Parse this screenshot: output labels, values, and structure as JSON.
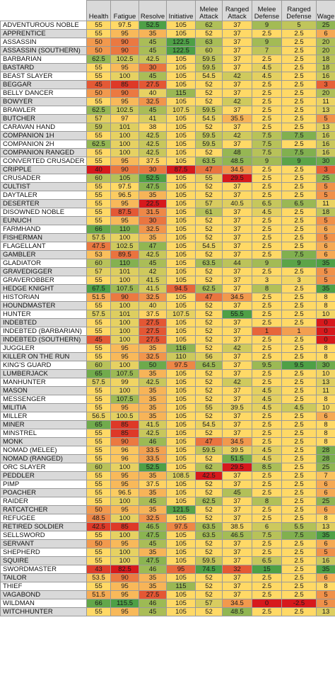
{
  "columns": [
    "",
    "Health",
    "Fatigue",
    "Resolve",
    "Initiative",
    "Melee Attack",
    "Ranged Attack",
    "Melee Defense",
    "Ranged Defense",
    "Wage"
  ],
  "rows": [
    {
      "name": "ADVENTUROUS NOBLE",
      "values": [
        "55",
        "97.5",
        "52.5",
        "105",
        "62",
        "37",
        "9",
        "5",
        "25"
      ]
    },
    {
      "name": "APPRENTICE",
      "values": [
        "55",
        "95",
        "35",
        "105",
        "52",
        "37",
        "2.5",
        "2.5",
        "6"
      ]
    },
    {
      "name": "ASSASSIN",
      "values": [
        "50",
        "90",
        "45",
        "122.5",
        "63",
        "37",
        "9",
        "2.5",
        "20"
      ]
    },
    {
      "name": "ASSASSIN (SOUTHERN)",
      "values": [
        "50",
        "90",
        "45",
        "122.5",
        "60",
        "37",
        "7",
        "2.5",
        "20"
      ]
    },
    {
      "name": "BARBARIAN",
      "values": [
        "62.5",
        "102.5",
        "42.5",
        "105",
        "59.5",
        "37",
        "2.5",
        "2.5",
        "18"
      ]
    },
    {
      "name": "BASTARD",
      "values": [
        "55",
        "95",
        "30",
        "105",
        "59.5",
        "37",
        "4.5",
        "2.5",
        "18"
      ]
    },
    {
      "name": "BEAST SLAYER",
      "values": [
        "55",
        "100",
        "45",
        "105",
        "54.5",
        "42",
        "4.5",
        "2.5",
        "16"
      ]
    },
    {
      "name": "BEGGAR",
      "values": [
        "45",
        "85",
        "27.5",
        "105",
        "52",
        "37",
        "2.5",
        "2.5",
        "3"
      ]
    },
    {
      "name": "BELLY DANCER",
      "values": [
        "50",
        "90",
        "40",
        "115",
        "52",
        "37",
        "2.5",
        "2.5",
        "20"
      ]
    },
    {
      "name": "BOWYER",
      "values": [
        "55",
        "95",
        "32.5",
        "105",
        "52",
        "42",
        "2.5",
        "2.5",
        "11"
      ]
    },
    {
      "name": "BRAWLER",
      "values": [
        "62.5",
        "102.5",
        "45",
        "107.5",
        "59.5",
        "37",
        "2.5",
        "2.5",
        "13"
      ]
    },
    {
      "name": "BUTCHER",
      "values": [
        "57",
        "97",
        "41",
        "105",
        "54.5",
        "35.5",
        "2.5",
        "2.5",
        "5"
      ]
    },
    {
      "name": "CARAVAN HAND",
      "values": [
        "59",
        "101",
        "38",
        "105",
        "52",
        "37",
        "2.5",
        "2.5",
        "13"
      ]
    },
    {
      "name": "COMPANION 1H",
      "values": [
        "55",
        "100",
        "42.5",
        "105",
        "59.5",
        "42",
        "7.5",
        "7.5",
        "16"
      ]
    },
    {
      "name": "COMPANION 2H",
      "values": [
        "62.5",
        "100",
        "42.5",
        "105",
        "59.5",
        "37",
        "7.5",
        "2.5",
        "16"
      ]
    },
    {
      "name": "COMPANION RANGED",
      "values": [
        "55",
        "100",
        "42.5",
        "105",
        "52",
        "48",
        "7.5",
        "7.5",
        "16"
      ]
    },
    {
      "name": "CONVERTED CRUSADER",
      "values": [
        "55",
        "95",
        "37.5",
        "105",
        "63.5",
        "48.5",
        "9",
        "9",
        "30"
      ]
    },
    {
      "name": "CRIPPLE",
      "values": [
        "40",
        "90",
        "30",
        "87.5",
        "47",
        "34.5",
        "2.5",
        "2.5",
        "3"
      ]
    },
    {
      "name": "CRUSADER",
      "values": [
        "60",
        "105",
        "52.5",
        "105",
        "55",
        "29.5",
        "2.5",
        "2.5",
        "25"
      ]
    },
    {
      "name": "CULTIST",
      "values": [
        "55",
        "97.5",
        "47.5",
        "105",
        "52",
        "37",
        "2.5",
        "2.5",
        "5"
      ]
    },
    {
      "name": "DAYTALER",
      "values": [
        "55",
        "96.5",
        "35",
        "105",
        "52",
        "37",
        "2.5",
        "2.5",
        "5"
      ]
    },
    {
      "name": "DESERTER",
      "values": [
        "55",
        "95",
        "22.5",
        "105",
        "57",
        "40.5",
        "6.5",
        "6.5",
        "11"
      ]
    },
    {
      "name": "DISOWNED NOBLE",
      "values": [
        "55",
        "87.5",
        "31.5",
        "105",
        "61",
        "37",
        "4.5",
        "2.5",
        "18"
      ]
    },
    {
      "name": "EUNUCH",
      "values": [
        "55",
        "95",
        "30",
        "105",
        "52",
        "37",
        "2.5",
        "2.5",
        "5"
      ]
    },
    {
      "name": "FARMHAND",
      "values": [
        "66",
        "110",
        "32.5",
        "105",
        "52",
        "37",
        "2.5",
        "2.5",
        "6"
      ]
    },
    {
      "name": "FISHERMAN",
      "values": [
        "57.5",
        "100",
        "35",
        "105",
        "52",
        "37",
        "2.5",
        "2.5",
        "5"
      ]
    },
    {
      "name": "FLAGELLANT",
      "values": [
        "47.5",
        "102.5",
        "47",
        "105",
        "54.5",
        "37",
        "2.5",
        "2.5",
        "6"
      ]
    },
    {
      "name": "GAMBLER",
      "values": [
        "53",
        "89.5",
        "42.5",
        "105",
        "52",
        "37",
        "2.5",
        "7.5",
        "6"
      ]
    },
    {
      "name": "GLADIATOR",
      "values": [
        "60",
        "110",
        "45",
        "105",
        "63.5",
        "44",
        "9",
        "9",
        "35"
      ]
    },
    {
      "name": "GRAVEDIGGER",
      "values": [
        "57",
        "101",
        "42",
        "105",
        "52",
        "37",
        "2.5",
        "2.5",
        "5"
      ]
    },
    {
      "name": "GRAVEROBBER",
      "values": [
        "55",
        "100",
        "41.5",
        "105",
        "52",
        "37",
        "3",
        "3",
        "5"
      ]
    },
    {
      "name": "HEDGE KNIGHT",
      "values": [
        "67.5",
        "107.5",
        "41.5",
        "94.5",
        "62.5",
        "37",
        "8",
        "2.5",
        "35"
      ]
    },
    {
      "name": "HISTORIAN",
      "values": [
        "51.5",
        "90",
        "32.5",
        "105",
        "47",
        "34.5",
        "2.5",
        "2.5",
        "8"
      ]
    },
    {
      "name": "HOUNDMASTER",
      "values": [
        "55",
        "100",
        "40",
        "105",
        "52",
        "37",
        "2.5",
        "2.5",
        "8"
      ]
    },
    {
      "name": "HUNTER",
      "values": [
        "57.5",
        "101",
        "37.5",
        "107.5",
        "52",
        "55.5",
        "2.5",
        "2.5",
        "10"
      ]
    },
    {
      "name": "INDEBTED",
      "values": [
        "55",
        "100",
        "27.5",
        "105",
        "52",
        "37",
        "2.5",
        "2.5",
        "0"
      ]
    },
    {
      "name": "INDEBTED (BARBARIAN)",
      "values": [
        "55",
        "100",
        "27.5",
        "105",
        "52",
        "37",
        "1",
        "1",
        "0"
      ]
    },
    {
      "name": "INDEBTED (SOUTHERN)",
      "values": [
        "45",
        "100",
        "27.5",
        "105",
        "52",
        "37",
        "2.5",
        "2.5",
        "0"
      ]
    },
    {
      "name": "JUGGLER",
      "values": [
        "55",
        "95",
        "35",
        "116",
        "52",
        "42",
        "2.5",
        "2.5",
        "8"
      ]
    },
    {
      "name": "KILLER ON THE RUN",
      "values": [
        "55",
        "95",
        "32.5",
        "110",
        "56",
        "37",
        "2.5",
        "2.5",
        "8"
      ]
    },
    {
      "name": "KING'S GUARD",
      "values": [
        "60",
        "100",
        "50",
        "97.5",
        "64.5",
        "37",
        "9.5",
        "9.5",
        "30"
      ]
    },
    {
      "name": "LUMBERJACK",
      "values": [
        "65",
        "107.5",
        "35",
        "105",
        "52",
        "37",
        "2.5",
        "2.5",
        "10"
      ]
    },
    {
      "name": "MANHUNTER",
      "values": [
        "57.5",
        "99",
        "42.5",
        "105",
        "52",
        "42",
        "2.5",
        "2.5",
        "13"
      ]
    },
    {
      "name": "MASON",
      "values": [
        "55",
        "100",
        "35",
        "105",
        "52",
        "37",
        "4.5",
        "2.5",
        "11"
      ]
    },
    {
      "name": "MESSENGER",
      "values": [
        "55",
        "107.5",
        "35",
        "105",
        "52",
        "37",
        "4.5",
        "2.5",
        "8"
      ]
    },
    {
      "name": "MILITIA",
      "values": [
        "55",
        "95",
        "35",
        "105",
        "55",
        "39.5",
        "4.5",
        "4.5",
        "10"
      ]
    },
    {
      "name": "MILLER",
      "values": [
        "56.5",
        "100.5",
        "35",
        "105",
        "52",
        "37",
        "2.5",
        "2.5",
        "6"
      ]
    },
    {
      "name": "MINER",
      "values": [
        "65",
        "85",
        "41.5",
        "105",
        "54.5",
        "37",
        "2.5",
        "2.5",
        "8"
      ]
    },
    {
      "name": "MINSTREL",
      "values": [
        "55",
        "85",
        "42.5",
        "105",
        "52",
        "37",
        "2.5",
        "2.5",
        "8"
      ]
    },
    {
      "name": "MONK",
      "values": [
        "55",
        "90",
        "46",
        "105",
        "47",
        "34.5",
        "2.5",
        "2.5",
        "8"
      ]
    },
    {
      "name": "NOMAD (MELEE)",
      "values": [
        "55",
        "96",
        "33.5",
        "105",
        "59.5",
        "39.5",
        "4.5",
        "2.5",
        "28"
      ]
    },
    {
      "name": "NOMAD (RANGED)",
      "values": [
        "55",
        "96",
        "33.5",
        "105",
        "52",
        "51.5",
        "4.5",
        "2.5",
        "28"
      ]
    },
    {
      "name": "ORC SLAYER",
      "values": [
        "60",
        "100",
        "52.5",
        "105",
        "62",
        "29.5",
        "8.5",
        "2.5",
        "25"
      ]
    },
    {
      "name": "PEDDLER",
      "values": [
        "55",
        "95",
        "35",
        "108.5",
        "42.5",
        "37",
        "2.5",
        "2.5",
        "7"
      ]
    },
    {
      "name": "PIMP",
      "values": [
        "55",
        "95",
        "37.5",
        "105",
        "52",
        "37",
        "2.5",
        "2.5",
        "6"
      ]
    },
    {
      "name": "POACHER",
      "values": [
        "55",
        "96.5",
        "35",
        "105",
        "52",
        "45",
        "2.5",
        "2.5",
        "6"
      ]
    },
    {
      "name": "RAIDER",
      "values": [
        "55",
        "100",
        "45",
        "105",
        "62.5",
        "37",
        "8",
        "2.5",
        "25"
      ]
    },
    {
      "name": "RATCATCHER",
      "values": [
        "50",
        "95",
        "35",
        "121.5",
        "52",
        "37",
        "2.5",
        "2.5",
        "6"
      ]
    },
    {
      "name": "REFUGEE",
      "values": [
        "48.5",
        "100",
        "32.5",
        "105",
        "52",
        "37",
        "2.5",
        "2.5",
        "8"
      ]
    },
    {
      "name": "RETIRED SOLDIER",
      "values": [
        "42.5",
        "85",
        "46.5",
        "97.5",
        "63.5",
        "38.5",
        "6",
        "5.5",
        "13"
      ]
    },
    {
      "name": "SELLSWORD",
      "values": [
        "55",
        "100",
        "47.5",
        "105",
        "63.5",
        "46.5",
        "7.5",
        "7.5",
        "35"
      ]
    },
    {
      "name": "SERVANT",
      "values": [
        "50",
        "95",
        "45",
        "105",
        "52",
        "37",
        "2.5",
        "2.5",
        "6"
      ]
    },
    {
      "name": "SHEPHERD",
      "values": [
        "55",
        "100",
        "35",
        "105",
        "52",
        "37",
        "2.5",
        "2.5",
        "5"
      ]
    },
    {
      "name": "SQUIRE",
      "values": [
        "55",
        "100",
        "47.5",
        "105",
        "59.5",
        "37",
        "6.5",
        "2.5",
        "16"
      ]
    },
    {
      "name": "SWORDMASTER",
      "values": [
        "43",
        "82.5",
        "46",
        "95",
        "74.5",
        "32",
        "15",
        "2.5",
        "35"
      ]
    },
    {
      "name": "TAILOR",
      "values": [
        "53.5",
        "90",
        "35",
        "105",
        "52",
        "37",
        "2.5",
        "2.5",
        "6"
      ]
    },
    {
      "name": "THIEF",
      "values": [
        "55",
        "95",
        "35",
        "115",
        "52",
        "37",
        "2.5",
        "2.5",
        "8"
      ]
    },
    {
      "name": "VAGABOND",
      "values": [
        "51.5",
        "95",
        "27.5",
        "105",
        "52",
        "37",
        "2.5",
        "2.5",
        "5"
      ]
    },
    {
      "name": "WILDMAN",
      "values": [
        "66",
        "115.5",
        "46",
        "105",
        "57",
        "34.5",
        "0",
        "-2.5",
        "5"
      ]
    },
    {
      "name": "WITCHHUNTER",
      "values": [
        "55",
        "95",
        "45",
        "105",
        "52",
        "48.5",
        "2.5",
        "2.5",
        "13"
      ]
    }
  ],
  "colors": {
    "header_bg": "#d9d9d9",
    "scale_low": "#d7191c",
    "scale_mid": "#ffd966",
    "scale_high": "#4ea046",
    "name_band": "#d9d9d9"
  }
}
